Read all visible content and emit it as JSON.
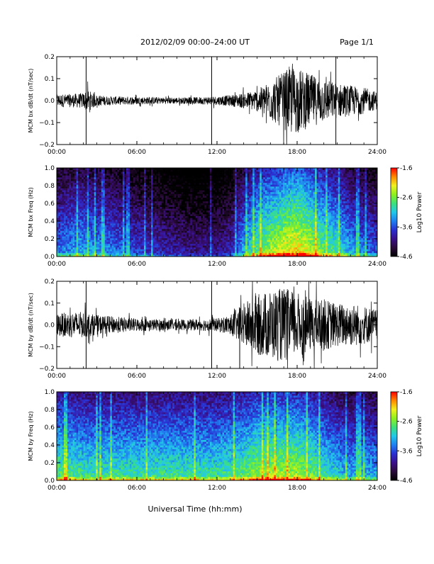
{
  "header": {
    "title": "2012/02/09  00:00–24:00 UT",
    "page": "Page 1/1"
  },
  "xlabel": "Universal Time (hh:mm)",
  "colors": {
    "trace": "#000000",
    "spectrogram_colormap": [
      "#000000",
      "#2a0a3a",
      "#3a0f8a",
      "#2a2fd0",
      "#1f7ff0",
      "#22c8e8",
      "#3ce07a",
      "#8ef020",
      "#f0f020",
      "#ff8a00",
      "#ff0000"
    ]
  },
  "chart_data": [
    {
      "type": "line",
      "ylabel": "MCM bx dB/dt (nT/sec)",
      "xlim": [
        0,
        24
      ],
      "ylim": [
        -0.2,
        0.2
      ],
      "x_ticks": [
        "00:00",
        "06:00",
        "12:00",
        "18:00",
        "24:00"
      ],
      "y_ticks": [
        "0.2",
        "0.1",
        "0.0",
        "−0.1",
        "−0.2"
      ],
      "series": [
        {
          "x": [
            0,
            1,
            2,
            2.3,
            3,
            4,
            6,
            8,
            10,
            11.8,
            12,
            13,
            14,
            15,
            16,
            17,
            17.5,
            18,
            19,
            20,
            21,
            22,
            23,
            24
          ],
          "amplitude": [
            0.03,
            0.03,
            0.035,
            0.05,
            0.025,
            0.02,
            0.018,
            0.015,
            0.015,
            0.02,
            0.02,
            0.025,
            0.035,
            0.05,
            0.09,
            0.13,
            0.16,
            0.15,
            0.12,
            0.1,
            0.08,
            0.07,
            0.06,
            0.04
          ]
        }
      ],
      "spikes": [
        {
          "x": 2.2,
          "low": -0.2,
          "high": 0.2
        },
        {
          "x": 11.6,
          "low": -0.2,
          "high": 0.2
        },
        {
          "x": 20.9,
          "low": -0.2,
          "high": 0.2
        }
      ]
    },
    {
      "type": "heatmap",
      "ylabel": "MCM bx Freq (Hz)",
      "xlim": [
        0,
        24
      ],
      "ylim": [
        0,
        1.0
      ],
      "x_ticks": [
        "00:00",
        "06:00",
        "12:00",
        "18:00",
        "24:00"
      ],
      "y_ticks": [
        "1.0",
        "0.8",
        "0.6",
        "0.4",
        "0.2",
        "0.0"
      ],
      "colorbar": {
        "label": "Log10 Power",
        "min": -4.6,
        "max": -1.6,
        "ticks": [
          "-1.6",
          "-2.6",
          "-3.6",
          "-4.6"
        ]
      },
      "activity_profile": {
        "x": [
          0,
          2,
          4,
          6,
          8,
          10,
          12,
          13,
          14,
          15,
          16,
          17,
          18,
          19,
          20,
          21,
          22,
          23,
          24
        ],
        "level": [
          0.35,
          0.4,
          0.35,
          0.28,
          0.22,
          0.18,
          0.18,
          0.22,
          0.4,
          0.55,
          0.62,
          0.68,
          0.72,
          0.65,
          0.55,
          0.5,
          0.4,
          0.35,
          0.3
        ]
      }
    },
    {
      "type": "line",
      "ylabel": "MCM by dB/dt (nT/sec)",
      "xlim": [
        0,
        24
      ],
      "ylim": [
        -0.2,
        0.2
      ],
      "x_ticks": [
        "00:00",
        "06:00",
        "12:00",
        "18:00",
        "24:00"
      ],
      "y_ticks": [
        "0.2",
        "0.1",
        "0.0",
        "−0.1",
        "−0.2"
      ],
      "series": [
        {
          "x": [
            0,
            1,
            2,
            3,
            4,
            6,
            8,
            10,
            11.8,
            12,
            13,
            14,
            15,
            16,
            17,
            18,
            19,
            20,
            21,
            22,
            23,
            24
          ],
          "amplitude": [
            0.05,
            0.06,
            0.06,
            0.045,
            0.04,
            0.03,
            0.025,
            0.025,
            0.03,
            0.03,
            0.045,
            0.1,
            0.14,
            0.16,
            0.17,
            0.15,
            0.12,
            0.12,
            0.1,
            0.1,
            0.09,
            0.07
          ]
        }
      ],
      "spikes": [
        {
          "x": 2.2,
          "low": -0.2,
          "high": 0.2
        },
        {
          "x": 11.6,
          "low": -0.2,
          "high": 0.2
        },
        {
          "x": 13.7,
          "low": -0.2,
          "high": 0.05
        }
      ]
    },
    {
      "type": "heatmap",
      "ylabel": "MCM by Freq (Hz)",
      "xlim": [
        0,
        24
      ],
      "ylim": [
        0,
        1.0
      ],
      "x_ticks": [
        "00:00",
        "06:00",
        "12:00",
        "18:00",
        "24:00"
      ],
      "y_ticks": [
        "1.0",
        "0.8",
        "0.6",
        "0.4",
        "0.2",
        "0.0"
      ],
      "colorbar": {
        "label": "Log10 Power",
        "min": -4.6,
        "max": -1.6,
        "ticks": [
          "-1.6",
          "-2.6",
          "-3.6",
          "-4.6"
        ]
      },
      "activity_profile": {
        "x": [
          0,
          2,
          4,
          6,
          8,
          10,
          12,
          13,
          14,
          15,
          16,
          17,
          18,
          19,
          20,
          21,
          22,
          23,
          24
        ],
        "level": [
          0.55,
          0.5,
          0.5,
          0.5,
          0.5,
          0.5,
          0.5,
          0.52,
          0.55,
          0.6,
          0.62,
          0.62,
          0.62,
          0.58,
          0.5,
          0.45,
          0.4,
          0.42,
          0.4
        ]
      }
    }
  ]
}
